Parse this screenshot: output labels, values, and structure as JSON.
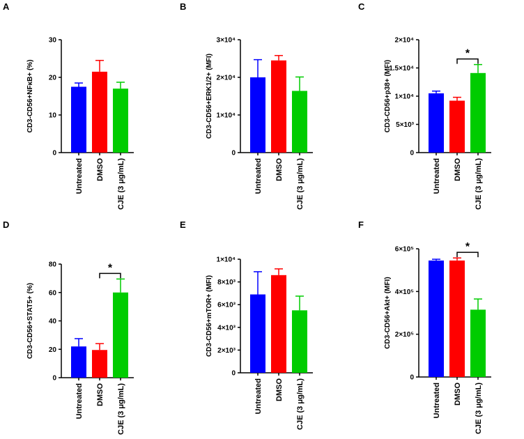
{
  "colors": {
    "untreated": "#0000ff",
    "dmso": "#ff0000",
    "cje": "#00cc00"
  },
  "chart_data": [
    {
      "type": "bar",
      "panel": "A",
      "ylabel": "CD3-CD56+NFκB+ (%)",
      "categories": [
        "Untreated",
        "DMSO",
        "CJE (3 μg/mL)"
      ],
      "values": [
        17.5,
        21.5,
        17.0
      ],
      "errors": [
        1.0,
        3.0,
        1.7
      ],
      "ylim": [
        0,
        30
      ],
      "yticks": [
        0,
        10,
        20,
        30
      ],
      "ytick_labels": [
        "0",
        "10",
        "20",
        "30"
      ],
      "significance": null
    },
    {
      "type": "bar",
      "panel": "B",
      "ylabel": "CD3-CD56+ERK1/2+ (MFI)",
      "categories": [
        "Untreated",
        "DMSO",
        "CJE (3 μg/mL)"
      ],
      "values": [
        20000,
        24500,
        16400
      ],
      "errors": [
        4700,
        1300,
        3700
      ],
      "ylim": [
        0,
        30000
      ],
      "yticks": [
        0,
        10000,
        20000,
        30000
      ],
      "ytick_labels": [
        "0",
        "1×10⁴",
        "2×10⁴",
        "3×10⁴"
      ],
      "significance": null
    },
    {
      "type": "bar",
      "panel": "C",
      "ylabel": "CD3-CD56+p38+ (MFI)",
      "categories": [
        "Untreated",
        "DMSO",
        "CJE (3 μg/mL)"
      ],
      "values": [
        10500,
        9200,
        14100
      ],
      "errors": [
        400,
        600,
        1500
      ],
      "ylim": [
        0,
        20000
      ],
      "yticks": [
        0,
        5000,
        10000,
        15000,
        20000
      ],
      "ytick_labels": [
        "0",
        "5×10³",
        "1×10⁴",
        "1.5×10⁴",
        "2×10⁴"
      ],
      "significance": {
        "from": 1,
        "to": 2,
        "label": "*"
      }
    },
    {
      "type": "bar",
      "panel": "D",
      "ylabel": "CD3-CD56+STAT5+ (%)",
      "categories": [
        "Untreated",
        "DMSO",
        "CJE (3 μg/mL)"
      ],
      "values": [
        22.0,
        19.5,
        60.0
      ],
      "errors": [
        5.5,
        4.5,
        9.5
      ],
      "ylim": [
        0,
        80
      ],
      "yticks": [
        0,
        20,
        40,
        60,
        80
      ],
      "ytick_labels": [
        "0",
        "20",
        "40",
        "60",
        "80"
      ],
      "significance": {
        "from": 1,
        "to": 2,
        "label": "*"
      }
    },
    {
      "type": "bar",
      "panel": "E",
      "ylabel": "CD3-CD56+mTOR+ (MFI)",
      "categories": [
        "Untreated",
        "DMSO",
        "CJE (3 μg/mL)"
      ],
      "values": [
        6900,
        8600,
        5500
      ],
      "errors": [
        2000,
        550,
        1250
      ],
      "ylim": [
        0,
        10000
      ],
      "yticks": [
        0,
        2000,
        4000,
        6000,
        8000,
        10000
      ],
      "ytick_labels": [
        "0",
        "2×10³",
        "4×10³",
        "6×10³",
        "8×10³",
        "1×10⁴"
      ],
      "significance": null
    },
    {
      "type": "bar",
      "panel": "F",
      "ylabel": "CD3-CD56+Akt+ (MFI)",
      "categories": [
        "Untreated",
        "DMSO",
        "CJE (3 μg/mL)"
      ],
      "values": [
        545000,
        545000,
        315000
      ],
      "errors": [
        6000,
        12000,
        50000
      ],
      "ylim": [
        0,
        600000
      ],
      "yticks": [
        0,
        200000,
        400000,
        600000
      ],
      "ytick_labels": [
        "0",
        "2×10⁵",
        "4×10⁵",
        "6×10⁵"
      ],
      "significance": {
        "from": 1,
        "to": 2,
        "label": "*"
      }
    }
  ]
}
